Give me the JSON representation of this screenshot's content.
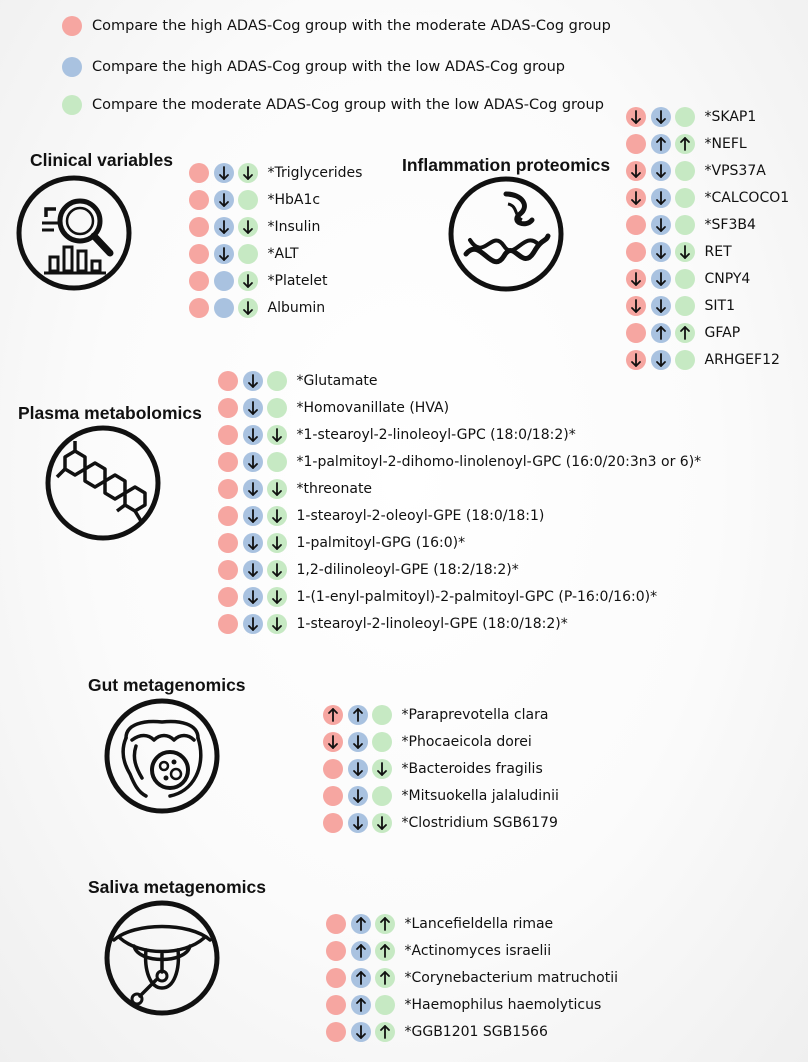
{
  "colors": {
    "pink": "#f6a6a1",
    "blue": "#a9c2e0",
    "green": "#c6e9c3",
    "arrow": "#111111"
  },
  "legend": [
    {
      "color": "pink",
      "text": "Compare the high ADAS-Cog group with the moderate ADAS-Cog group"
    },
    {
      "color": "blue",
      "text": "Compare the high ADAS-Cog group with the low ADAS-Cog group"
    },
    {
      "color": "green",
      "text": "Compare the moderate ADAS-Cog group with the low ADAS-Cog group"
    }
  ],
  "sections": [
    {
      "id": "clinical",
      "title": "Clinical variables",
      "icon": "magnifier-chart-icon",
      "rows": [
        {
          "label": "*Triglycerides",
          "marks": [
            "",
            "down",
            "down"
          ]
        },
        {
          "label": "*HbA1c",
          "marks": [
            "",
            "down",
            ""
          ]
        },
        {
          "label": "*Insulin",
          "marks": [
            "",
            "down",
            "down"
          ]
        },
        {
          "label": "*ALT",
          "marks": [
            "",
            "down",
            ""
          ]
        },
        {
          "label": "*Platelet",
          "marks": [
            "",
            "",
            "down"
          ]
        },
        {
          "label": "Albumin",
          "marks": [
            "",
            "",
            "down"
          ]
        }
      ]
    },
    {
      "id": "inflammation",
      "title": "Inflammation proteomics",
      "icon": "protein-helix-icon",
      "rows": [
        {
          "label": "*SKAP1",
          "marks": [
            "down",
            "down",
            ""
          ]
        },
        {
          "label": "*NEFL",
          "marks": [
            "",
            "up",
            "up"
          ]
        },
        {
          "label": "*VPS37A",
          "marks": [
            "down",
            "down",
            ""
          ]
        },
        {
          "label": "*CALCOCO1",
          "marks": [
            "down",
            "down",
            ""
          ]
        },
        {
          "label": "*SF3B4",
          "marks": [
            "",
            "down",
            ""
          ]
        },
        {
          "label": "RET",
          "marks": [
            "",
            "down",
            "down"
          ]
        },
        {
          "label": "CNPY4",
          "marks": [
            "down",
            "down",
            ""
          ]
        },
        {
          "label": "SIT1",
          "marks": [
            "down",
            "down",
            ""
          ]
        },
        {
          "label": "GFAP",
          "marks": [
            "",
            "up",
            "up"
          ]
        },
        {
          "label": "ARHGEF12",
          "marks": [
            "down",
            "down",
            ""
          ]
        }
      ]
    },
    {
      "id": "plasma",
      "title": "Plasma metabolomics",
      "icon": "molecule-icon",
      "rows": [
        {
          "label": "*Glutamate",
          "marks": [
            "",
            "down",
            ""
          ]
        },
        {
          "label": "*Homovanillate (HVA)",
          "marks": [
            "",
            "down",
            ""
          ]
        },
        {
          "label": "*1-stearoyl-2-linoleoyl-GPC (18:0/18:2)*",
          "marks": [
            "",
            "down",
            "down"
          ]
        },
        {
          "label": "*1-palmitoyl-2-dihomo-linolenoyl-GPC (16:0/20:3n3 or 6)*",
          "marks": [
            "",
            "down",
            ""
          ]
        },
        {
          "label": "*threonate",
          "marks": [
            "",
            "down",
            "down"
          ]
        },
        {
          "label": "1-stearoyl-2-oleoyl-GPE (18:0/18:1)",
          "marks": [
            "",
            "down",
            "down"
          ]
        },
        {
          "label": "1-palmitoyl-GPG (16:0)*",
          "marks": [
            "",
            "down",
            "down"
          ]
        },
        {
          "label": "1,2-dilinoleoyl-GPE (18:2/18:2)*",
          "marks": [
            "",
            "down",
            "down"
          ]
        },
        {
          "label": "1-(1-enyl-palmitoyl)-2-palmitoyl-GPC (P-16:0/16:0)*",
          "marks": [
            "",
            "down",
            "down"
          ]
        },
        {
          "label": "1-stearoyl-2-linoleoyl-GPE (18:0/18:2)*",
          "marks": [
            "",
            "down",
            "down"
          ]
        }
      ]
    },
    {
      "id": "gut",
      "title": "Gut metagenomics",
      "icon": "intestine-icon",
      "rows": [
        {
          "label": "*Paraprevotella clara",
          "marks": [
            "up",
            "up",
            ""
          ]
        },
        {
          "label": "*Phocaeicola dorei",
          "marks": [
            "down",
            "down",
            ""
          ]
        },
        {
          "label": "*Bacteroides fragilis",
          "marks": [
            "",
            "down",
            "down"
          ]
        },
        {
          "label": "*Mitsuokella jalaludinii",
          "marks": [
            "",
            "down",
            ""
          ]
        },
        {
          "label": "*Clostridium SGB6179",
          "marks": [
            "",
            "down",
            "down"
          ]
        }
      ]
    },
    {
      "id": "saliva",
      "title": "Saliva metagenomics",
      "icon": "mouth-swab-icon",
      "rows": [
        {
          "label": "*Lancefieldella rimae",
          "marks": [
            "",
            "up",
            "up"
          ]
        },
        {
          "label": "*Actinomyces israelii",
          "marks": [
            "",
            "up",
            "up"
          ]
        },
        {
          "label": "*Corynebacterium matruchotii",
          "marks": [
            "",
            "up",
            "up"
          ]
        },
        {
          "label": "*Haemophilus haemolyticus",
          "marks": [
            "",
            "up",
            ""
          ]
        },
        {
          "label": "*GGB1201 SGB1566",
          "marks": [
            "",
            "down",
            "up"
          ]
        }
      ]
    }
  ]
}
